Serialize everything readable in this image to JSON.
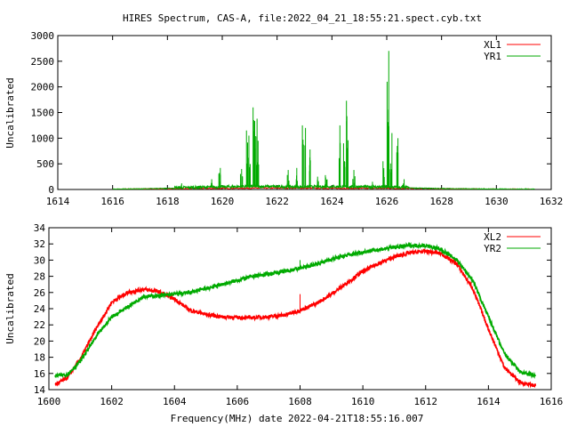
{
  "chart_data": [
    {
      "type": "line",
      "title": "HIRES Spectrum, CAS-A, file:2022_04_21_18:55:21.spect.cyb.txt",
      "xlabel": "",
      "ylabel": "Uncalibrated",
      "xlim": [
        1614,
        1632
      ],
      "ylim": [
        0,
        3000
      ],
      "xticks": [
        1614,
        1616,
        1618,
        1620,
        1622,
        1624,
        1626,
        1628,
        1630,
        1632
      ],
      "yticks": [
        0,
        500,
        1000,
        1500,
        2000,
        2500,
        3000
      ],
      "legend": "top-right",
      "grid": false,
      "series": [
        {
          "name": "XL1",
          "color": "#ff0000",
          "x": [
            1616.0,
            1617.0,
            1618.0,
            1619.0,
            1620.0,
            1621.0,
            1622.0,
            1623.0,
            1624.0,
            1625.0,
            1626.0,
            1627.0,
            1628.0,
            1629.0,
            1630.0,
            1631.4
          ],
          "y": [
            2,
            8,
            14,
            18,
            22,
            26,
            28,
            26,
            24,
            22,
            24,
            20,
            14,
            8,
            4,
            2
          ]
        },
        {
          "name": "YR1",
          "color": "#00aa00",
          "baseline": {
            "x": [
              1616.0,
              1617.0,
              1618.0,
              1619.0,
              1620.0,
              1621.0,
              1622.0,
              1623.0,
              1624.0,
              1625.0,
              1626.0,
              1627.0,
              1628.0,
              1629.0,
              1630.0,
              1631.4
            ],
            "y": [
              5,
              10,
              20,
              30,
              40,
              50,
              45,
              40,
              45,
              40,
              35,
              25,
              15,
              10,
              6,
              4
            ]
          },
          "spikes": [
            [
              1618.5,
              120
            ],
            [
              1619.6,
              200
            ],
            [
              1619.9,
              420
            ],
            [
              1620.7,
              400
            ],
            [
              1620.9,
              1150
            ],
            [
              1621.0,
              1050
            ],
            [
              1621.15,
              1600
            ],
            [
              1621.25,
              1380
            ],
            [
              1621.3,
              950
            ],
            [
              1622.4,
              380
            ],
            [
              1622.7,
              420
            ],
            [
              1622.95,
              1250
            ],
            [
              1623.05,
              1200
            ],
            [
              1623.2,
              780
            ],
            [
              1623.5,
              250
            ],
            [
              1623.8,
              280
            ],
            [
              1624.3,
              1250
            ],
            [
              1624.45,
              900
            ],
            [
              1624.55,
              1730
            ],
            [
              1624.8,
              380
            ],
            [
              1625.5,
              150
            ],
            [
              1625.9,
              550
            ],
            [
              1626.05,
              2700
            ],
            [
              1626.15,
              1100
            ],
            [
              1626.4,
              1000
            ],
            [
              1626.6,
              200
            ]
          ]
        }
      ]
    },
    {
      "type": "line",
      "title": "",
      "xlabel": "Frequency(MHz) date 2022-04-21T18:55:16.007",
      "ylabel": "Uncalibrated",
      "xlim": [
        1600,
        1616
      ],
      "ylim": [
        14,
        34
      ],
      "xticks": [
        1600,
        1602,
        1604,
        1606,
        1608,
        1610,
        1612,
        1614,
        1616
      ],
      "yticks": [
        14,
        16,
        18,
        20,
        22,
        24,
        26,
        28,
        30,
        32,
        34
      ],
      "legend": "top-right",
      "grid": false,
      "series": [
        {
          "name": "XL2",
          "color": "#ff0000",
          "x": [
            1600.2,
            1600.6,
            1601.0,
            1601.5,
            1602.0,
            1602.5,
            1603.0,
            1603.5,
            1604.0,
            1604.5,
            1605.0,
            1605.5,
            1606.0,
            1606.5,
            1607.0,
            1607.5,
            1608.0,
            1608.5,
            1609.0,
            1609.5,
            1610.0,
            1610.5,
            1611.0,
            1611.5,
            1612.0,
            1612.5,
            1613.0,
            1613.5,
            1614.0,
            1614.5,
            1615.0,
            1615.5
          ],
          "y": [
            14.6,
            15.5,
            17.8,
            21.5,
            24.8,
            26.0,
            26.4,
            26.1,
            25.2,
            23.8,
            23.3,
            23.0,
            22.9,
            22.9,
            23.0,
            23.2,
            23.8,
            24.6,
            25.8,
            27.2,
            28.6,
            29.6,
            30.4,
            30.9,
            31.1,
            30.8,
            29.5,
            26.5,
            21.5,
            16.8,
            14.9,
            14.5
          ],
          "spike": [
            1608.0,
            25.8
          ]
        },
        {
          "name": "YR2",
          "color": "#00aa00",
          "x": [
            1600.2,
            1600.6,
            1601.0,
            1601.5,
            1602.0,
            1602.5,
            1603.0,
            1603.5,
            1604.0,
            1604.5,
            1605.0,
            1605.5,
            1606.0,
            1606.5,
            1607.0,
            1607.5,
            1608.0,
            1608.5,
            1609.0,
            1609.5,
            1610.0,
            1610.5,
            1611.0,
            1611.5,
            1612.0,
            1612.5,
            1613.0,
            1613.5,
            1614.0,
            1614.5,
            1615.0,
            1615.5
          ],
          "y": [
            15.7,
            15.9,
            17.5,
            20.5,
            23.0,
            24.2,
            25.5,
            25.6,
            25.8,
            26.0,
            26.5,
            27.0,
            27.5,
            28.0,
            28.3,
            28.6,
            29.0,
            29.5,
            30.1,
            30.6,
            31.0,
            31.3,
            31.6,
            31.8,
            31.8,
            31.3,
            30.0,
            27.5,
            23.0,
            18.5,
            16.2,
            15.7
          ],
          "spike": [
            1608.0,
            30.0
          ]
        }
      ]
    }
  ]
}
